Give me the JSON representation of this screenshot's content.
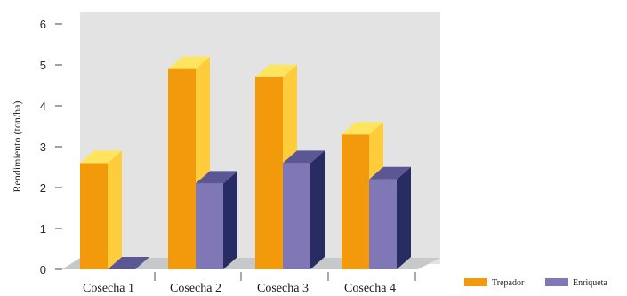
{
  "chart_data": {
    "type": "bar",
    "title": "",
    "xlabel": "",
    "ylabel": "Rendimiento (ton/ha)",
    "ylim": [
      0,
      6
    ],
    "yticks": [
      "0",
      "1",
      "2",
      "3",
      "4",
      "5",
      "6"
    ],
    "categories": [
      "Cosecha 1",
      "Cosecha 2",
      "Cosecha 3",
      "Cosecha 4"
    ],
    "series": [
      {
        "name": "Trepador",
        "values": [
          2.6,
          4.9,
          4.7,
          3.3
        ]
      },
      {
        "name": "Enriqueta",
        "values": [
          0,
          2.1,
          2.6,
          2.2
        ]
      }
    ],
    "colors": {
      "Trepador": {
        "front": "#f29a0c",
        "side": "#ffcd3c",
        "top": "#ffe45e"
      },
      "Enriqueta": {
        "front": "#7f77b6",
        "side": "#272d62",
        "top": "#5b5794"
      },
      "plot_bg": "#e3e3e4",
      "floor": "#c3c6c8"
    },
    "legend_position": "bottom-right",
    "grid": false,
    "style": "3d-bar"
  }
}
